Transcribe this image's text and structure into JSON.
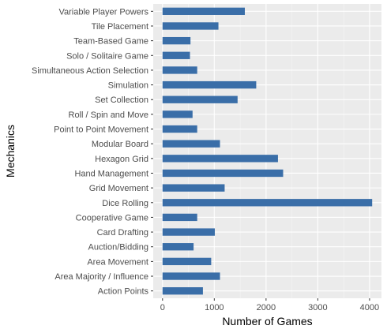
{
  "chart_data": {
    "type": "bar",
    "orientation": "horizontal",
    "xlabel": "Number of Games",
    "ylabel": "Mechanics",
    "xlim": [
      -180,
      4230
    ],
    "x_ticks": [
      0,
      1000,
      2000,
      3000,
      4000
    ],
    "categories": [
      "Action Points",
      "Area Majority / Influence",
      "Area Movement",
      "Auction/Bidding",
      "Card Drafting",
      "Cooperative Game",
      "Dice Rolling",
      "Grid Movement",
      "Hand Management",
      "Hexagon Grid",
      "Modular Board",
      "Point to Point Movement",
      "Roll / Spin and Move",
      "Set Collection",
      "Simulation",
      "Simultaneous Action Selection",
      "Solo / Solitaire Game",
      "Team-Based Game",
      "Tile Placement",
      "Variable Player Powers"
    ],
    "values": [
      780,
      1110,
      940,
      600,
      1010,
      670,
      4050,
      1200,
      2330,
      2230,
      1110,
      670,
      580,
      1450,
      1810,
      670,
      530,
      540,
      1080,
      1590
    ],
    "grid": true,
    "legend": "none",
    "colors": {
      "bar": "#3a6ea8",
      "panel": "#ebebeb",
      "grid_major": "#ffffff",
      "grid_minor": "#f5f5f5",
      "tick_text": "#4d4d4d"
    }
  }
}
